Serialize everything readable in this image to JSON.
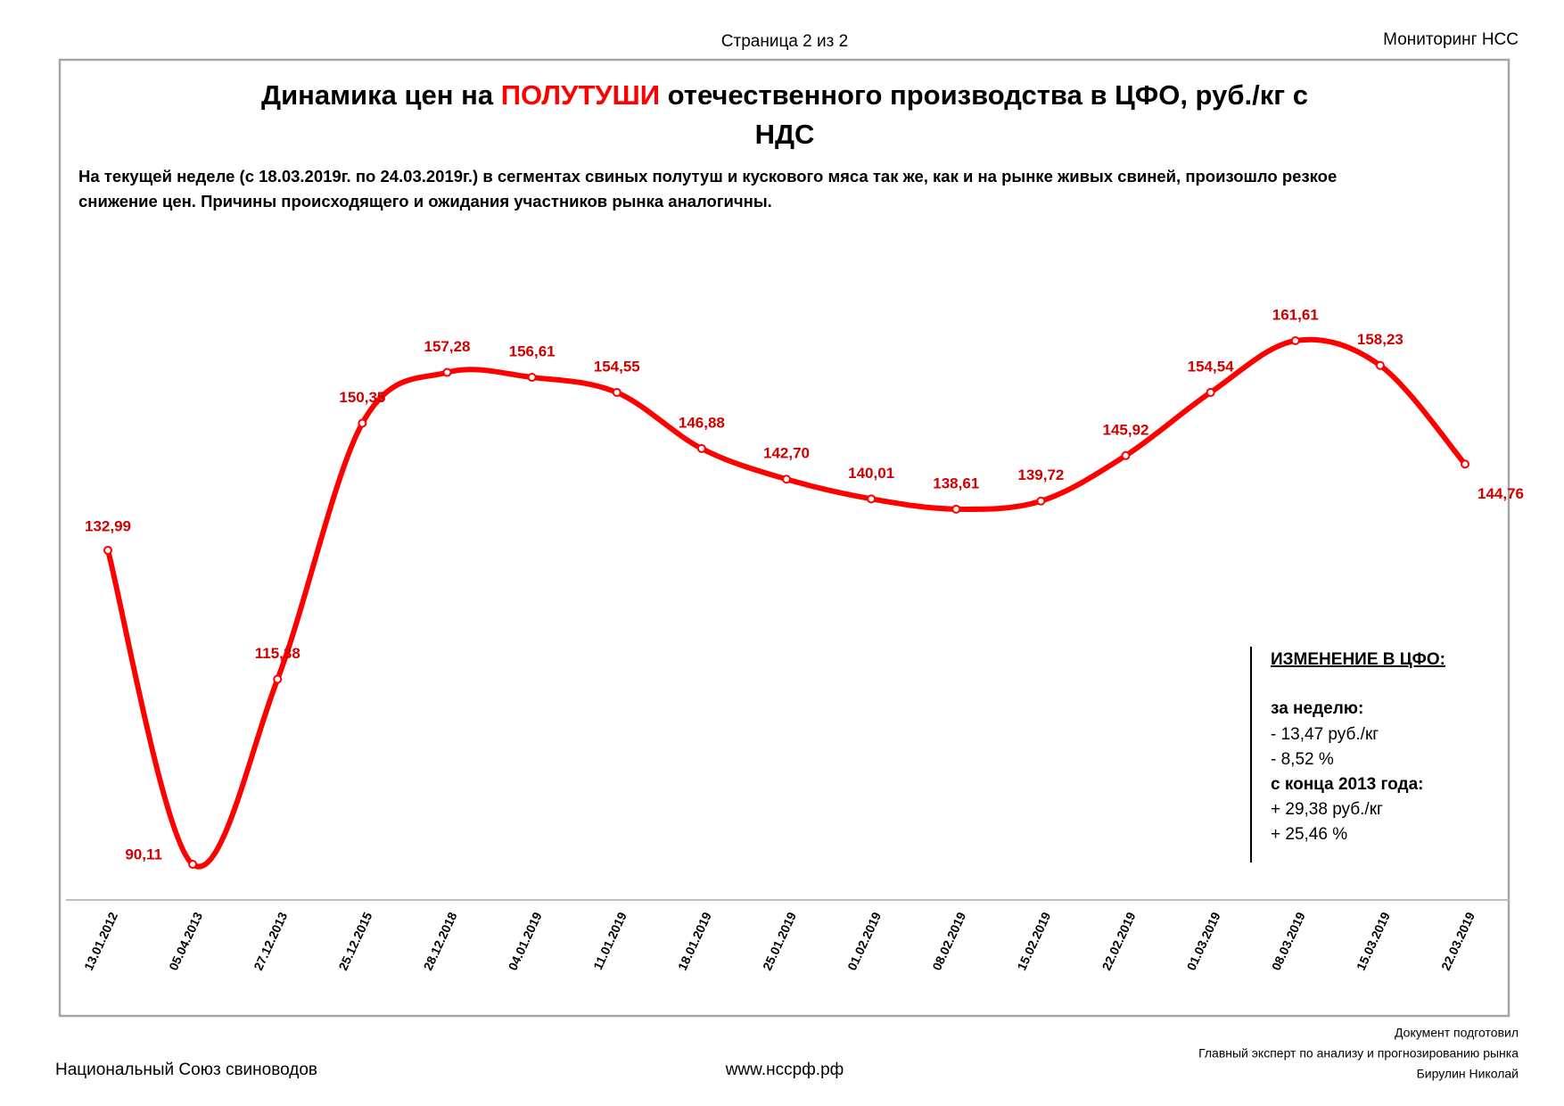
{
  "header": {
    "page": "Страница 2 из 2",
    "brand": "Мониторинг НСС"
  },
  "title": {
    "before": "Динамика цен на ",
    "highlight": "ПОЛУТУШИ",
    "after": " отечественного производства в ЦФО, руб./кг с",
    "line2": "НДС"
  },
  "description": [
    "На текущей неделе (с 18.03.2019г. по 24.03.2019г.)  в сегментах свиных полутуш и кускового мяса так же, как и на рынке живых свиней, произошло резкое",
    "снижение цен. Причины происходящего и ожидания участников рынка аналогичны."
  ],
  "chart_data": {
    "type": "line",
    "color": "#ff0000",
    "categories": [
      "13.01.2012",
      "05.04.2013",
      "27.12.2013",
      "25.12.2015",
      "28.12.2018",
      "04.01.2019",
      "11.01.2019",
      "18.01.2019",
      "25.01.2019",
      "01.02.2019",
      "08.02.2019",
      "15.02.2019",
      "22.02.2019",
      "01.03.2019",
      "08.03.2019",
      "15.03.2019",
      "22.03.2019"
    ],
    "values": [
      132.99,
      90.11,
      115.38,
      150.35,
      157.28,
      156.61,
      154.55,
      146.88,
      142.7,
      140.01,
      138.61,
      139.72,
      145.92,
      154.54,
      161.61,
      158.23,
      144.76
    ],
    "value_labels": [
      "132,99",
      "90,11",
      "115,38",
      "150,35",
      "157,28",
      "156,61",
      "154,55",
      "146,88",
      "142,70",
      "140,01",
      "138,61",
      "139,72",
      "145,92",
      "154,54",
      "161,61",
      "158,23",
      "144,76"
    ]
  },
  "change_box": {
    "heading": "ИЗМЕНЕНИЕ В ЦФО:",
    "week_label": "за неделю:",
    "week_abs": "- 13,47  руб./кг",
    "week_pct": "- 8,52 %",
    "since_label": "с конца 2013 года:",
    "since_abs": "+ 29,38 руб./кг",
    "since_pct": "+ 25,46 %"
  },
  "footer": {
    "org": "Национальный Союз свиноводов",
    "site": "www.нсcрф.рф",
    "prepared": [
      "Документ подготовил",
      "Главный эксперт по анализу и прогнозированию рынка",
      "Бирулин Николай"
    ]
  }
}
